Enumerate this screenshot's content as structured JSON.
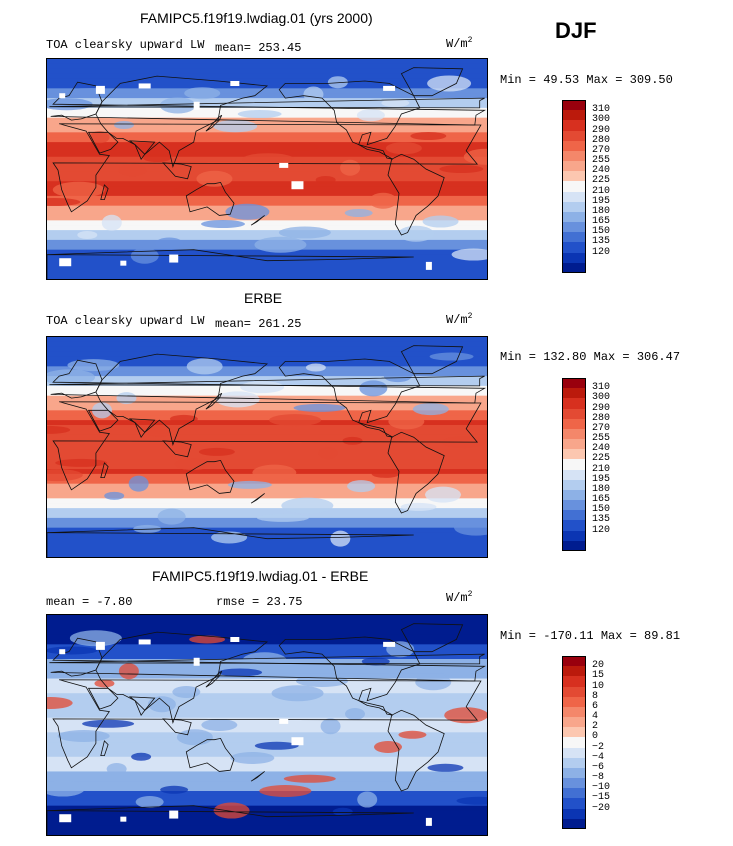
{
  "season": "DJF",
  "panels": [
    {
      "id": "model",
      "title": "FAMIPC5.f19f19.lwdiag.01 (yrs 2000)",
      "variable": "TOA clearsky upward LW",
      "stat_text": "mean= 253.45",
      "rmse_text": "",
      "unit": "W/m",
      "unit_sup": "2",
      "minmax": "Min =  49.53 Max = 309.50",
      "kind": "abs",
      "ticks": [
        "310",
        "300",
        "290",
        "280",
        "270",
        "255",
        "240",
        "225",
        "210",
        "195",
        "180",
        "165",
        "150",
        "135",
        "120"
      ],
      "colors": [
        "#99000d",
        "#bb1a0c",
        "#d7301f",
        "#e34a33",
        "#ef6548",
        "#f4876a",
        "#f8a68b",
        "#fcc7b0",
        "#f7f7f7",
        "#d6e3f5",
        "#b3cdef",
        "#8db1e6",
        "#6891dd",
        "#4270d3",
        "#2251c9",
        "#0b35b3",
        "#001c8f"
      ]
    },
    {
      "id": "obs",
      "title": "ERBE",
      "variable": "TOA clearsky upward LW",
      "stat_text": "mean= 261.25",
      "rmse_text": "",
      "unit": "W/m",
      "unit_sup": "2",
      "minmax": "Min = 132.80 Max = 306.47",
      "kind": "abs",
      "ticks": [
        "310",
        "300",
        "290",
        "280",
        "270",
        "255",
        "240",
        "225",
        "210",
        "195",
        "180",
        "165",
        "150",
        "135",
        "120"
      ],
      "colors": [
        "#99000d",
        "#bb1a0c",
        "#d7301f",
        "#e34a33",
        "#ef6548",
        "#f4876a",
        "#f8a68b",
        "#fcc7b0",
        "#f7f7f7",
        "#d6e3f5",
        "#b3cdef",
        "#8db1e6",
        "#6891dd",
        "#4270d3",
        "#2251c9",
        "#0b35b3",
        "#001c8f"
      ]
    },
    {
      "id": "diff",
      "title": "FAMIPC5.f19f19.lwdiag.01 - ERBE",
      "variable": "",
      "stat_text": "mean =   -7.80",
      "rmse_text": "rmse =   23.75",
      "unit": "W/m",
      "unit_sup": "2",
      "minmax": "Min = -170.11 Max =  89.81",
      "kind": "diff",
      "ticks": [
        "20",
        "15",
        "10",
        "8",
        "6",
        "4",
        "2",
        "0",
        "−2",
        "−4",
        "−6",
        "−8",
        "−10",
        "−15",
        "−20"
      ],
      "colors": [
        "#99000d",
        "#bb1a0c",
        "#d7301f",
        "#e34a33",
        "#ef6548",
        "#f4876a",
        "#f8a68b",
        "#fcc7b0",
        "#f7f7f7",
        "#d6e3f5",
        "#b3cdef",
        "#8db1e6",
        "#6891dd",
        "#4270d3",
        "#2251c9",
        "#0b35b3",
        "#001c8f"
      ]
    }
  ]
}
